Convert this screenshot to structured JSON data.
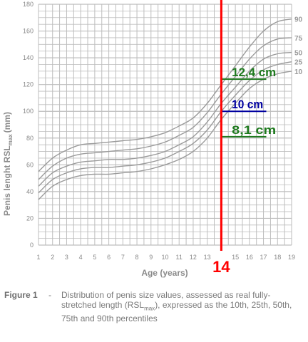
{
  "chart_data": {
    "type": "line",
    "xlabel": "Age (years)",
    "ylabel": "Penis lenght RSL",
    "ylabel_sub": "max",
    "ylabel_unit": "(mm)",
    "xlim": [
      1,
      19
    ],
    "ylim": [
      0,
      180
    ],
    "x_ticks": [
      1,
      2,
      3,
      4,
      5,
      6,
      7,
      8,
      9,
      10,
      11,
      12,
      13,
      14,
      15,
      16,
      17,
      18,
      19
    ],
    "y_ticks": [
      0,
      20,
      40,
      60,
      80,
      100,
      120,
      140,
      160,
      180
    ],
    "grid": true,
    "colors": {
      "curves": "#9b9b9b",
      "grid": "#bdbdbd",
      "marker": "#ff0000",
      "green": "#1f7a1f",
      "blue": "#0000a0"
    },
    "x": [
      1,
      2,
      3,
      4,
      5,
      6,
      7,
      8,
      9,
      10,
      11,
      12,
      13,
      14,
      15,
      16,
      17,
      18,
      19
    ],
    "series": [
      {
        "name": "90",
        "values": [
          55,
          65,
          71,
          75,
          76,
          77,
          78,
          79,
          81,
          84,
          89,
          95,
          106,
          120,
          134,
          148,
          160,
          167,
          169
        ]
      },
      {
        "name": "75",
        "values": [
          49,
          59,
          65,
          68,
          69,
          70,
          71,
          72,
          74,
          77,
          82,
          88,
          99,
          113,
          126,
          139,
          149,
          154,
          155
        ]
      },
      {
        "name": "50",
        "values": [
          44,
          54,
          59,
          62,
          63,
          64,
          64,
          65,
          67,
          70,
          75,
          81,
          92,
          106,
          118,
          130,
          139,
          143,
          144
        ]
      },
      {
        "name": "25",
        "values": [
          39,
          49,
          54,
          57,
          58,
          58,
          59,
          60,
          62,
          65,
          70,
          76,
          86,
          100,
          112,
          123,
          131,
          135,
          137
        ]
      },
      {
        "name": "10",
        "values": [
          34,
          44,
          49,
          52,
          53,
          53,
          54,
          55,
          57,
          60,
          64,
          70,
          80,
          94,
          106,
          117,
          124,
          128,
          130
        ]
      }
    ],
    "marker": {
      "x": 14,
      "label": "14"
    },
    "annotations": [
      {
        "y": 124,
        "label": "12,4 cm",
        "color": "green"
      },
      {
        "y": 100,
        "label": "10 cm",
        "color": "blue"
      },
      {
        "y": 81,
        "label": "8,1 cm",
        "color": "green"
      }
    ]
  },
  "caption": {
    "label": "Figure 1",
    "separator": "-",
    "text_before": "Distribution of penis size values, assessed as real fully-stretched length (RSL",
    "text_sub": "max",
    "text_after": "), expressed as the 10th, 25th, 50th, 75th and 90th percentiles"
  }
}
